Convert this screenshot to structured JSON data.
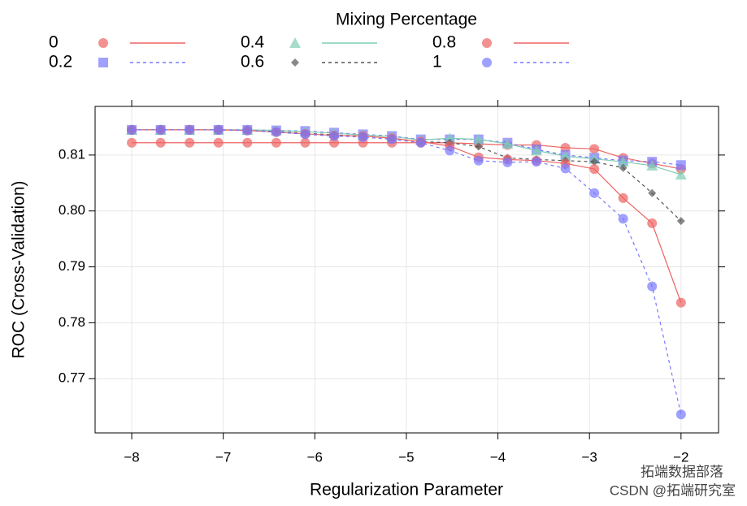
{
  "chart_data": {
    "type": "line",
    "legend_title": "Mixing Percentage",
    "xlabel": "Regularization Parameter",
    "ylabel": "ROC (Cross-Validation)",
    "x": [
      -8,
      -7.684,
      -7.368,
      -7.053,
      -6.737,
      -6.421,
      -6.105,
      -5.789,
      -5.474,
      -5.158,
      -4.842,
      -4.526,
      -4.211,
      -3.895,
      -3.579,
      -3.263,
      -2.947,
      -2.632,
      -2.316,
      -2
    ],
    "xlim": [
      -8.4,
      -1.59
    ],
    "ylim": [
      0.7603,
      0.8187
    ],
    "xticks": [
      {
        "value": -8,
        "label": "−8"
      },
      {
        "value": -7,
        "label": "−7"
      },
      {
        "value": -6,
        "label": "−6"
      },
      {
        "value": -5,
        "label": "−5"
      },
      {
        "value": -4,
        "label": "−4"
      },
      {
        "value": -3,
        "label": "−3"
      },
      {
        "value": -2,
        "label": "−2"
      }
    ],
    "yticks": [
      0.77,
      0.78,
      0.79,
      {
        "value": 0.8,
        "label": "0.80"
      },
      0.81
    ],
    "grid": true,
    "series": [
      {
        "name": "0",
        "color": "#ee6363",
        "marker": "circle",
        "line_style": "solid",
        "values": [
          0.8122,
          0.8122,
          0.8122,
          0.8122,
          0.8122,
          0.8122,
          0.8122,
          0.8122,
          0.8122,
          0.8122,
          0.8122,
          0.8122,
          0.812,
          0.8118,
          0.8118,
          0.8113,
          0.8111,
          0.8095,
          0.8085,
          0.8075
        ]
      },
      {
        "name": "0.2",
        "color": "#7878ff",
        "marker": "square",
        "line_style": "dashed",
        "values": [
          0.8145,
          0.8145,
          0.8145,
          0.8145,
          0.8145,
          0.8144,
          0.8143,
          0.814,
          0.8137,
          0.8134,
          0.8128,
          0.8128,
          0.8128,
          0.8122,
          0.811,
          0.81,
          0.8095,
          0.809,
          0.8088,
          0.8082
        ]
      },
      {
        "name": "0.4",
        "color": "#7fcdb5",
        "marker": "triangle",
        "line_style": "solid",
        "values": [
          0.8145,
          0.8145,
          0.8145,
          0.8145,
          0.8145,
          0.8144,
          0.8142,
          0.8139,
          0.8136,
          0.8133,
          0.8127,
          0.813,
          0.8128,
          0.812,
          0.8108,
          0.8098,
          0.8093,
          0.8088,
          0.8081,
          0.8065
        ]
      },
      {
        "name": "0.6",
        "color": "#555555",
        "marker": "diamond",
        "line_style": "dashed",
        "values": [
          0.8145,
          0.8145,
          0.8145,
          0.8145,
          0.8144,
          0.8142,
          0.8139,
          0.8136,
          0.8134,
          0.813,
          0.8124,
          0.8122,
          0.8115,
          0.8095,
          0.8092,
          0.809,
          0.8088,
          0.8077,
          0.8032,
          0.7982
        ]
      },
      {
        "name": "0.8",
        "color": "#ee6363",
        "marker": "circle",
        "line_style": "solid",
        "values": [
          0.8145,
          0.8145,
          0.8145,
          0.8145,
          0.8144,
          0.8141,
          0.8138,
          0.8135,
          0.8134,
          0.813,
          0.8124,
          0.8116,
          0.8096,
          0.8092,
          0.809,
          0.8085,
          0.8075,
          0.8023,
          0.7978,
          0.7836
        ]
      },
      {
        "name": "1",
        "color": "#7878ff",
        "marker": "circle",
        "line_style": "dashed",
        "values": [
          0.8145,
          0.8145,
          0.8145,
          0.8145,
          0.8144,
          0.8141,
          0.8137,
          0.8134,
          0.8132,
          0.8128,
          0.8122,
          0.8108,
          0.809,
          0.8087,
          0.8088,
          0.8076,
          0.8032,
          0.7986,
          0.7865,
          0.7636
        ]
      }
    ]
  },
  "watermark": [
    "拓端数据部落",
    "CSDN @拓端研究室"
  ]
}
